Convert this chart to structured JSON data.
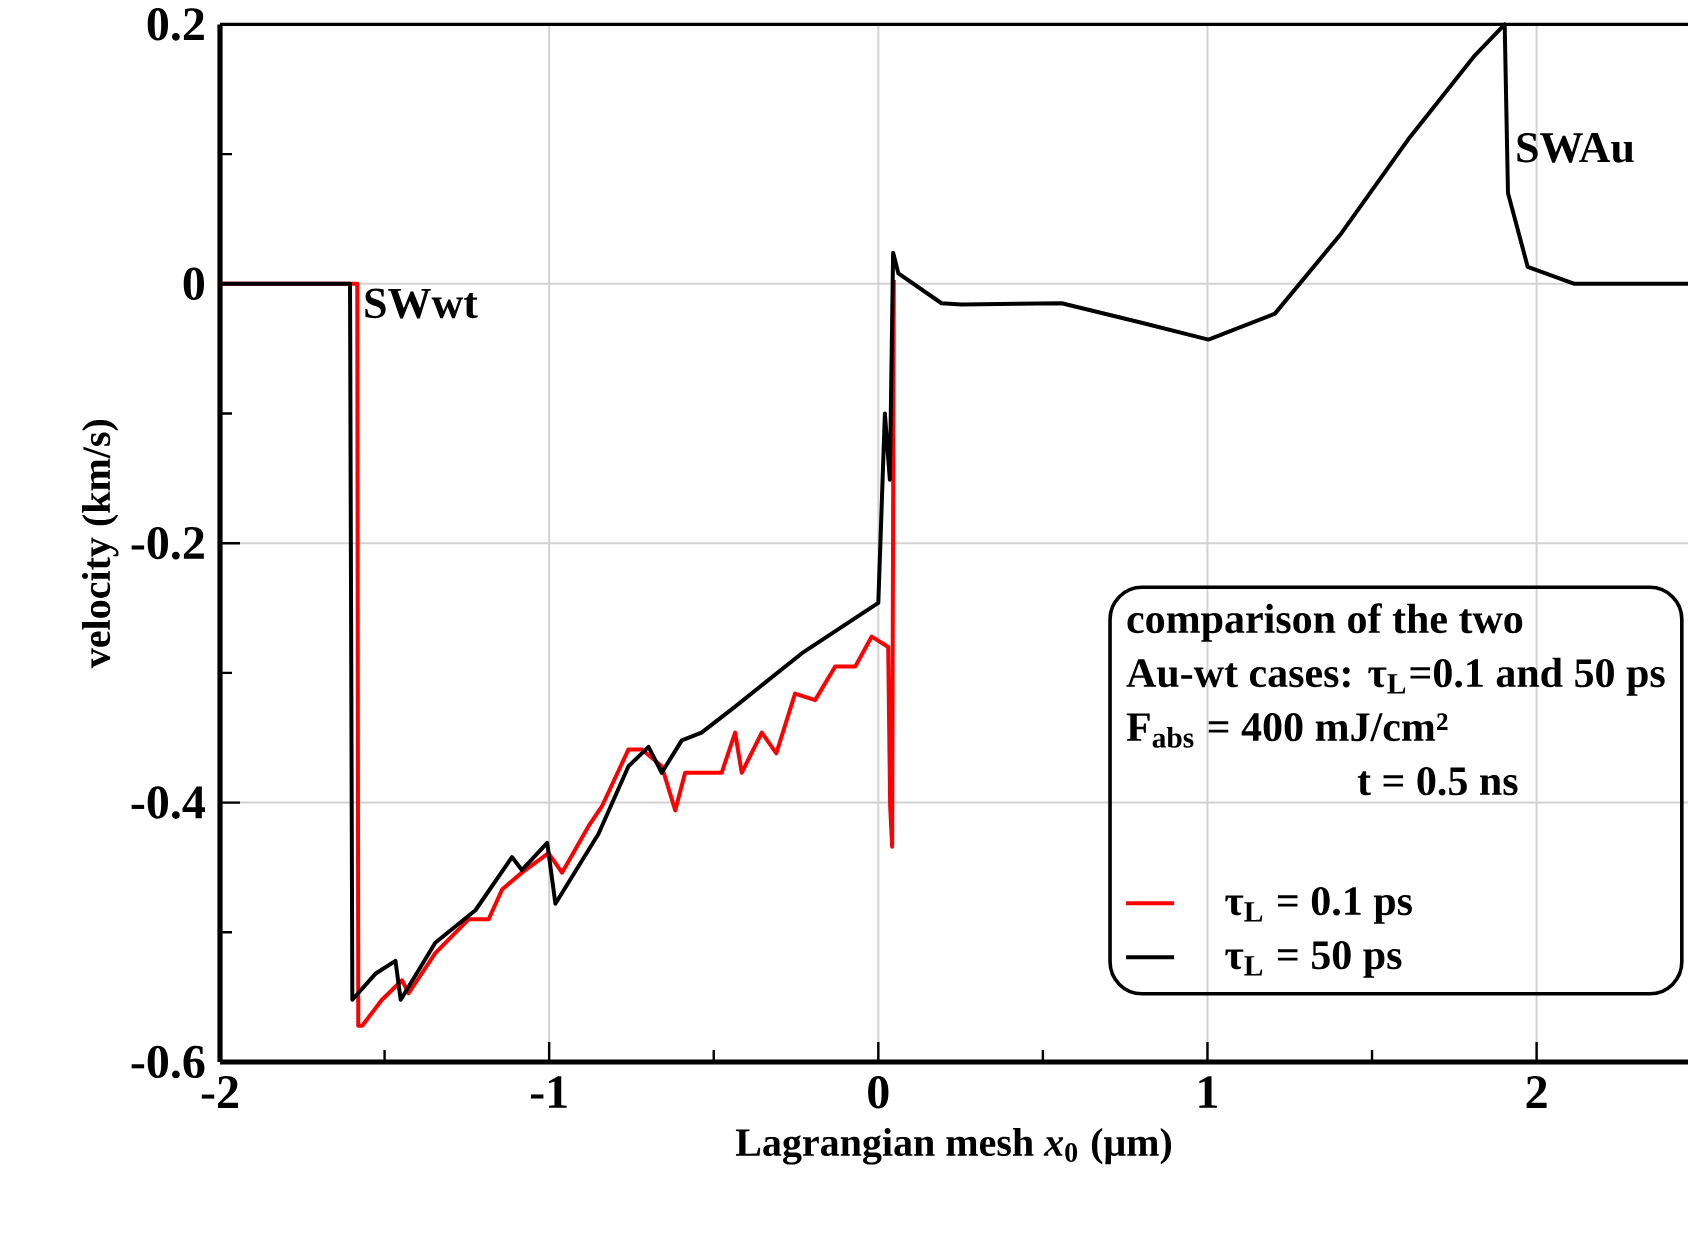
{
  "chart_data": {
    "type": "line",
    "xlabel": "Lagrangian mesh *x*$_{0}$ (μm)",
    "ylabel": "velocity (km/s)",
    "xlim": [
      -2,
      2.46
    ],
    "ylim": [
      -0.6,
      0.2
    ],
    "xticks": [
      -2,
      -1,
      0,
      1,
      2
    ],
    "yticks": [
      -0.6,
      -0.4,
      -0.2,
      0,
      0.2
    ],
    "grid": true,
    "legend": "bottom right",
    "line_style": "solid",
    "annotations": [
      "comparison of the two",
      "Au-wt cases: τ$_{L}$=0.1 and 50 ps",
      "F$_{abs}$ = 400 mJ/cm²",
      "t = 0.5 ns",
      {
        "text": "SWwt",
        "x": -1.58,
        "y": 0
      },
      {
        "text": "SWAu",
        "x": 1.92,
        "y": 0.12
      }
    ],
    "series": [
      {
        "name": "τ$_{L}$ = 0.1 ps",
        "color": "#ff0000",
        "x": [
          -2,
          -1.583,
          -1.58,
          -1.568,
          -1.508,
          -1.447,
          -1.427,
          -1.346,
          -1.245,
          -1.184,
          -1.143,
          -1.083,
          -1.002,
          -0.961,
          -0.88,
          -0.84,
          -0.759,
          -0.718,
          -0.658,
          -0.617,
          -0.587,
          -0.537,
          -0.476,
          -0.435,
          -0.415,
          -0.354,
          -0.31,
          -0.253,
          -0.192,
          -0.131,
          -0.07,
          -0.02,
          0.03,
          0.036,
          0.042,
          0.047
        ],
        "values": [
          0,
          0,
          -0.572,
          -0.572,
          -0.552,
          -0.537,
          -0.547,
          -0.516,
          -0.49,
          -0.49,
          -0.467,
          -0.454,
          -0.439,
          -0.454,
          -0.418,
          -0.403,
          -0.359,
          -0.359,
          -0.372,
          -0.406,
          -0.377,
          -0.377,
          -0.377,
          -0.346,
          -0.377,
          -0.346,
          -0.362,
          -0.316,
          -0.321,
          -0.295,
          -0.295,
          -0.272,
          -0.28,
          -0.403,
          -0.434,
          0.003
        ]
      },
      {
        "name": "τ$_{L}$ = 50 ps",
        "color": "#000000",
        "x": [
          -2,
          -1.605,
          -1.598,
          -1.528,
          -1.467,
          -1.451,
          -1.346,
          -1.224,
          -1.113,
          -1.083,
          -1.006,
          -0.981,
          -0.85,
          -0.759,
          -0.698,
          -0.658,
          -0.597,
          -0.537,
          -0.435,
          -0.233,
          0.0,
          0.02,
          0.035,
          0.045,
          0.061,
          0.192,
          0.253,
          0.557,
          0.8,
          1.003,
          1.205,
          1.407,
          1.609,
          1.812,
          1.903,
          1.913,
          1.973,
          2.115,
          2.46
        ],
        "values": [
          0,
          0,
          -0.552,
          -0.532,
          -0.522,
          -0.552,
          -0.508,
          -0.483,
          -0.442,
          -0.452,
          -0.431,
          -0.478,
          -0.424,
          -0.372,
          -0.357,
          -0.377,
          -0.352,
          -0.346,
          -0.326,
          -0.285,
          -0.246,
          -0.1,
          -0.151,
          0.024,
          0.008,
          -0.015,
          -0.016,
          -0.015,
          -0.03,
          -0.043,
          -0.023,
          0.039,
          0.111,
          0.176,
          0.2,
          0.07,
          0.013,
          0.0,
          0.0
        ]
      }
    ]
  }
}
